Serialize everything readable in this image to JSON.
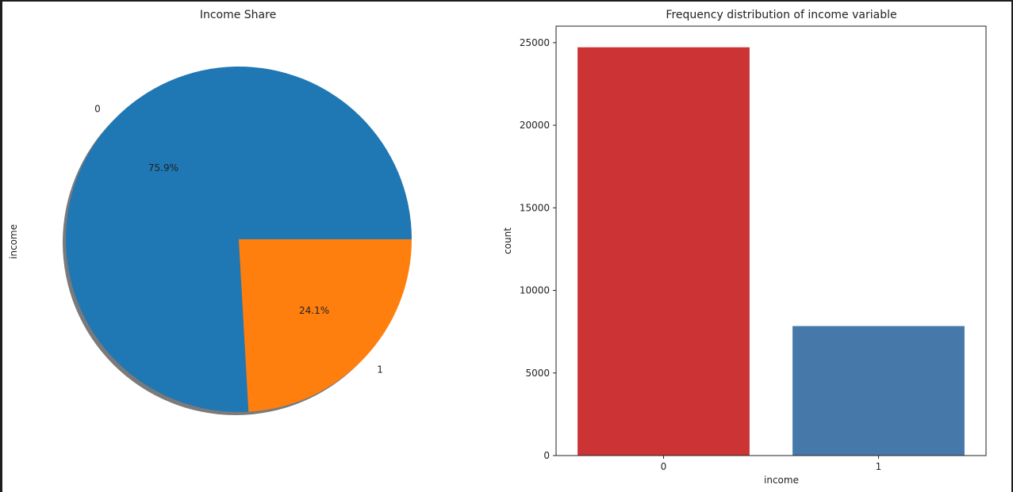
{
  "chart_data": [
    {
      "type": "pie",
      "title": "Income Share",
      "ylabel": "income",
      "labels": [
        "0",
        "1"
      ],
      "values": [
        75.9,
        24.1
      ],
      "autopct": [
        "75.9%",
        "24.1%"
      ],
      "colors": [
        "#1f77b4",
        "#ff7f0e"
      ],
      "shadow": true
    },
    {
      "type": "bar",
      "title": "Frequency distribution of income variable",
      "xlabel": "income",
      "ylabel": "count",
      "categories": [
        "0",
        "1"
      ],
      "values": [
        24720,
        7841
      ],
      "colors": [
        "#cb3335",
        "#4679aa"
      ],
      "ylim": [
        0,
        26000
      ],
      "yticks": [
        0,
        5000,
        10000,
        15000,
        20000,
        25000
      ],
      "ytick_labels": [
        "0",
        "5000",
        "10000",
        "15000",
        "20000",
        "25000"
      ],
      "grid": false
    }
  ]
}
